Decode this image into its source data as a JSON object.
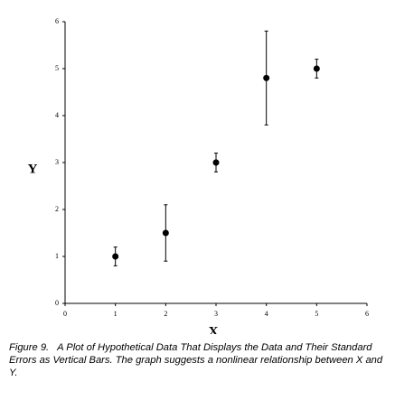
{
  "chart_data": {
    "type": "scatter",
    "x_label": "X",
    "y_label": "Y",
    "x": [
      1,
      2,
      3,
      4,
      5
    ],
    "y": [
      1,
      1.5,
      3,
      4.8,
      5
    ],
    "yerr": [
      0.2,
      0.6,
      0.2,
      1.0,
      0.2
    ],
    "color": "#000000",
    "xlim": [
      0,
      6
    ],
    "xticks": [
      0,
      1,
      2,
      3,
      4,
      5,
      6
    ],
    "ylim": [
      0,
      6
    ],
    "yticks": [
      0,
      1,
      2,
      3,
      4,
      5,
      6
    ]
  },
  "caption": {
    "label": "Figure 9.",
    "text": "A Plot of Hypothetical Data That Displays the Data and Their Standard Errors as Vertical Bars. The graph suggests a nonlinear relationship between X and Y."
  }
}
